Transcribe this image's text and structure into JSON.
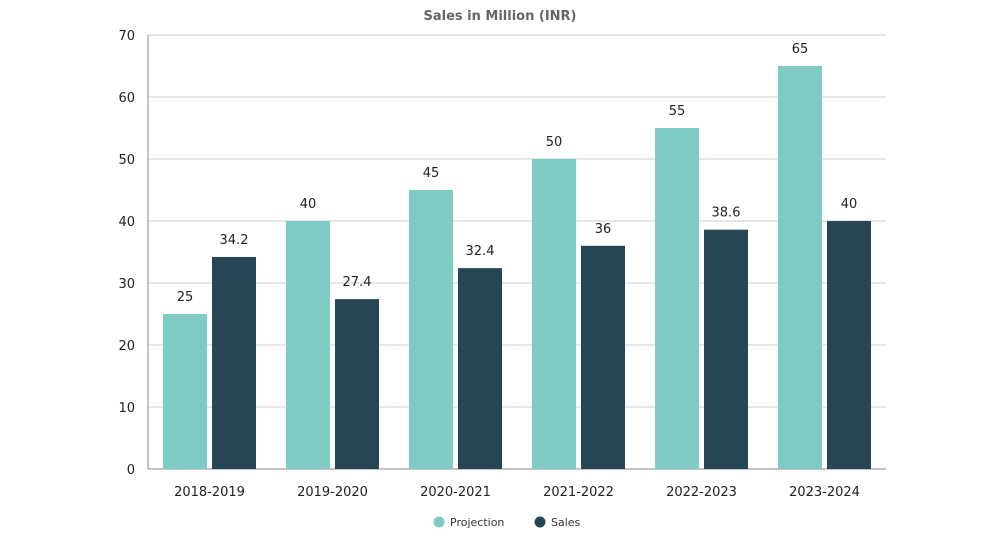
{
  "chart_data": {
    "type": "bar",
    "title": "Sales in Million (INR)",
    "categories": [
      "2018-2019",
      "2019-2020",
      "2020-2021",
      "2021-2022",
      "2022-2023",
      "2023-2024"
    ],
    "series": [
      {
        "name": "Projection",
        "color": "#7ecbc3",
        "values": [
          25,
          40,
          45,
          50,
          55,
          65
        ]
      },
      {
        "name": "Sales",
        "color": "#264653",
        "values": [
          34.2,
          27.4,
          32.4,
          36,
          38.6,
          40
        ]
      }
    ],
    "ylim": [
      0,
      70
    ],
    "yticks": [
      0,
      10,
      20,
      30,
      40,
      50,
      60,
      70
    ],
    "xlabel": "",
    "ylabel": "",
    "grid": true,
    "legend_position": "bottom-center"
  }
}
